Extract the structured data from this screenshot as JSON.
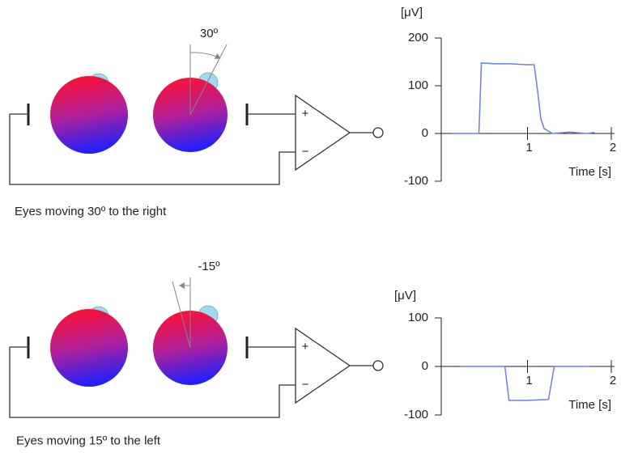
{
  "diagram": {
    "panels": [
      {
        "angle": "30º",
        "caption": "Eyes moving 30º to the right",
        "plus": "+",
        "minus": "−"
      },
      {
        "angle": "-15º",
        "caption": "Eyes moving 15º to the left",
        "plus": "+",
        "minus": "−"
      }
    ]
  },
  "chart_data": [
    {
      "type": "line",
      "ylabel": "[μV]",
      "xlabel": "Time [s]",
      "color": "#6f7fe0",
      "x": [
        0.1,
        0.42,
        0.45,
        0.6,
        0.8,
        1.0,
        1.08,
        1.12,
        1.16,
        1.2,
        1.3,
        1.5,
        1.7,
        1.8
      ],
      "values": [
        0,
        0,
        148,
        146,
        146,
        144,
        144,
        90,
        30,
        10,
        0,
        3,
        0,
        2
      ],
      "xlim": [
        0,
        2
      ],
      "xticks": [
        1,
        2
      ],
      "ylim": [
        -100,
        200
      ],
      "yticks": [
        -100,
        0,
        100,
        200
      ]
    },
    {
      "type": "line",
      "ylabel": "[μV]",
      "xlabel": "Time [s]",
      "color": "#6f7fe0",
      "x": [
        0.2,
        0.73,
        0.78,
        1.0,
        1.25,
        1.32,
        1.75
      ],
      "values": [
        0,
        0,
        -70,
        -70,
        -68,
        0,
        0
      ],
      "xlim": [
        0,
        2
      ],
      "xticks": [
        1,
        2
      ],
      "ylim": [
        -100,
        100
      ],
      "yticks": [
        -100,
        0,
        100
      ]
    }
  ]
}
